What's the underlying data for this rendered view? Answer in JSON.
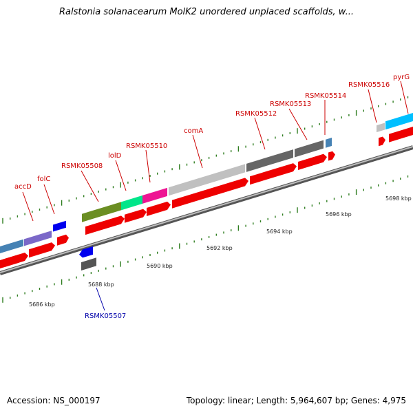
{
  "title": "Ralstonia solanacearum MolK2 unordered unplaced scaffolds, w...",
  "footer": {
    "accession": "Accession: NS_000197",
    "topology": "Topology: linear; Length: 5,964,607 bp; Genes: 4,975"
  },
  "colors": {
    "backbone": "#8c8c8c",
    "tick": "#2e7d1f",
    "label_red": "#cc0000",
    "label_blue": "#0000aa",
    "cds_red": "#ee0000"
  },
  "scale_labels": [
    "5686 kbp",
    "5688 kbp",
    "5690 kbp",
    "5692 kbp",
    "5694 kbp",
    "5696 kbp",
    "5698 kbp"
  ],
  "gene_labels": [
    {
      "name": "accD",
      "color": "red"
    },
    {
      "name": "folC",
      "color": "red"
    },
    {
      "name": "RSMK05508",
      "color": "red"
    },
    {
      "name": "lolD",
      "color": "red"
    },
    {
      "name": "RSMK05510",
      "color": "red"
    },
    {
      "name": "comA",
      "color": "red"
    },
    {
      "name": "RSMK05512",
      "color": "red"
    },
    {
      "name": "RSMK05513",
      "color": "red"
    },
    {
      "name": "RSMK05514",
      "color": "red"
    },
    {
      "name": "RSMK05516",
      "color": "red"
    },
    {
      "name": "pyrG",
      "color": "red"
    },
    {
      "name": "RSMK05507",
      "color": "blue"
    }
  ]
}
